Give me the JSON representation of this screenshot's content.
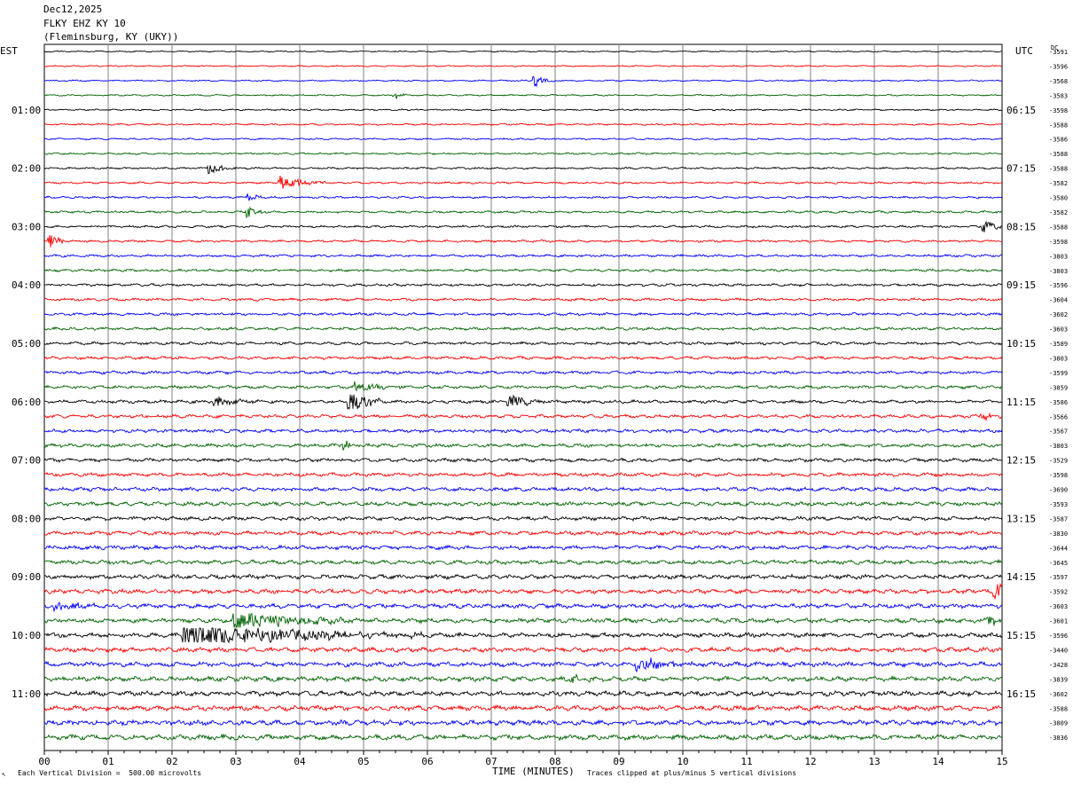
{
  "header": {
    "date": "Dec12,2025",
    "station": "FLKY EHZ KY 10",
    "location": "(Fleminsburg, KY (UKY))"
  },
  "footer": {
    "scale": "Each Vertical Division =  500.00 microvolts",
    "xlabel": "TIME (MINUTES)",
    "clip_note": "Traces clipped at plus/minus 5 vertical divisions"
  },
  "chart_data": {
    "type": "line",
    "title": "FLKY EHZ KY 10",
    "xlabel": "TIME (MINUTES)",
    "ylabel_left": "EST",
    "ylabel_right": "UTC",
    "dc_header": "DC",
    "xlim": [
      0,
      15
    ],
    "x_ticks": [
      "00",
      "01",
      "02",
      "03",
      "04",
      "05",
      "06",
      "07",
      "08",
      "09",
      "10",
      "11",
      "12",
      "13",
      "14",
      "15"
    ],
    "grid": true,
    "trace_colors": [
      "#000000",
      "#ff0000",
      "#0000ff",
      "#006400"
    ],
    "traces_per_hour": 4,
    "trace_interval_minutes": 15,
    "left_hour_labels": [
      "01:00",
      "02:00",
      "03:00",
      "04:00",
      "05:00",
      "06:00",
      "07:00",
      "08:00",
      "09:00",
      "10:00",
      "11:00"
    ],
    "right_hour_labels": [
      "06:15",
      "07:15",
      "08:15",
      "09:15",
      "10:15",
      "11:15",
      "12:15",
      "13:15",
      "14:15",
      "15:15",
      "16:15"
    ],
    "dc_offsets": [
      "-3591",
      "-3596",
      "-3568",
      "-3583",
      "-3598",
      "-3588",
      "-3586",
      "-3588",
      "-3588",
      "-3582",
      "-3580",
      "-3582",
      "-3588",
      "-3598",
      "-3803",
      "-3803",
      "-3596",
      "-3604",
      "-3602",
      "-3603",
      "-3589",
      "-3803",
      "-3599",
      "-3859",
      "-3586",
      "-3566",
      "-3567",
      "-3803",
      "-3529",
      "-3598",
      "-3690",
      "-3593",
      "-3587",
      "-3830",
      "-3644",
      "-3645",
      "-3597",
      "-3592",
      "-3603",
      "-3601",
      "-3596",
      "-3440",
      "-3428",
      "-3839",
      "-3602",
      "-3588",
      "-3809",
      "-3836"
    ],
    "events": [
      {
        "trace": 2,
        "minute": 7.7,
        "amp": 2.2,
        "dur": 0.3
      },
      {
        "trace": 3,
        "minute": 5.5,
        "amp": 1.5,
        "dur": 0.2
      },
      {
        "trace": 8,
        "minute": 2.6,
        "amp": 1.8,
        "dur": 0.6
      },
      {
        "trace": 9,
        "minute": 3.7,
        "amp": 3.0,
        "dur": 0.7
      },
      {
        "trace": 10,
        "minute": 3.2,
        "amp": 1.4,
        "dur": 0.3
      },
      {
        "trace": 11,
        "minute": 3.2,
        "amp": 2.0,
        "dur": 0.3
      },
      {
        "trace": 12,
        "minute": 14.7,
        "amp": 2.6,
        "dur": 0.4
      },
      {
        "trace": 13,
        "minute": 0.1,
        "amp": 2.6,
        "dur": 0.3
      },
      {
        "trace": 23,
        "minute": 4.9,
        "amp": 1.8,
        "dur": 0.8
      },
      {
        "trace": 24,
        "minute": 4.8,
        "amp": 5.0,
        "dur": 0.5
      },
      {
        "trace": 24,
        "minute": 2.7,
        "amp": 1.6,
        "dur": 0.9
      },
      {
        "trace": 24,
        "minute": 7.3,
        "amp": 2.4,
        "dur": 0.6
      },
      {
        "trace": 25,
        "minute": 14.7,
        "amp": 1.4,
        "dur": 0.5
      },
      {
        "trace": 27,
        "minute": 4.7,
        "amp": 2.2,
        "dur": 0.2
      },
      {
        "trace": 37,
        "minute": 14.9,
        "amp": 5.0,
        "dur": 0.5
      },
      {
        "trace": 38,
        "minute": 0.2,
        "amp": 2.2,
        "dur": 0.7
      },
      {
        "trace": 39,
        "minute": 3.0,
        "amp": 3.5,
        "dur": 2.2
      },
      {
        "trace": 39,
        "minute": 14.8,
        "amp": 2.5,
        "dur": 0.3
      },
      {
        "trace": 40,
        "minute": 2.2,
        "amp": 5.0,
        "dur": 3.8
      },
      {
        "trace": 42,
        "minute": 9.3,
        "amp": 3.0,
        "dur": 0.9
      },
      {
        "trace": 43,
        "minute": 8.2,
        "amp": 1.4,
        "dur": 0.8
      }
    ]
  }
}
